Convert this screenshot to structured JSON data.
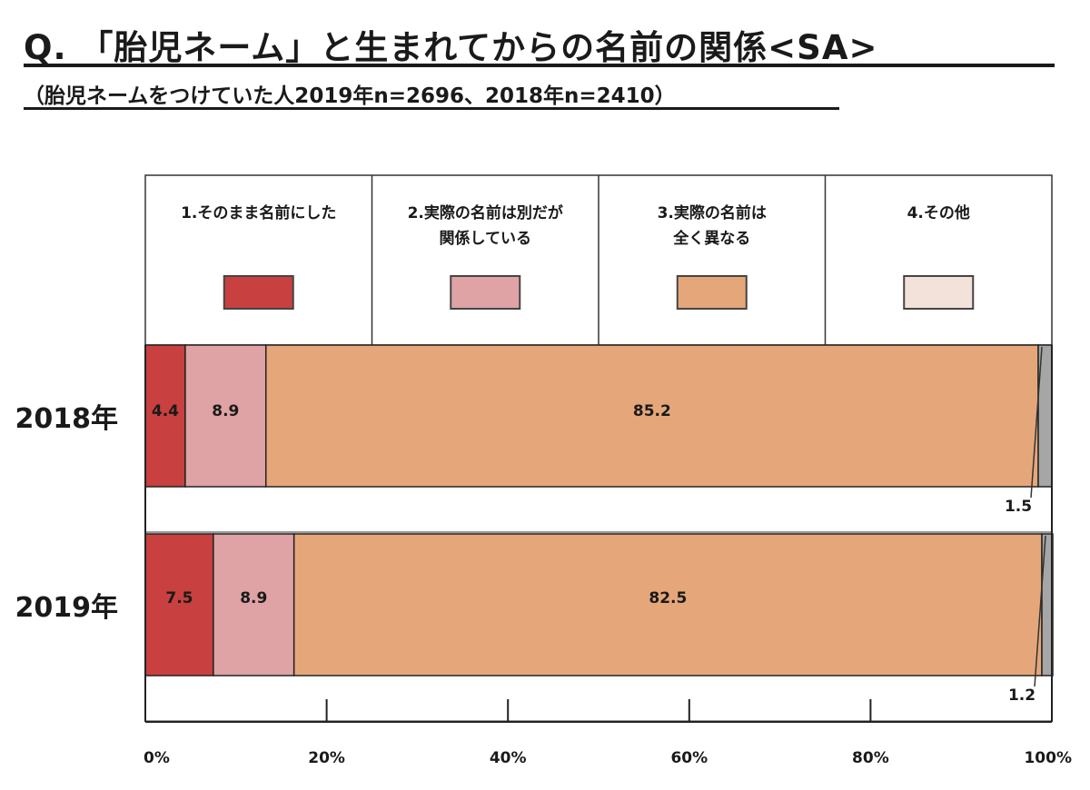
{
  "title": "Q. 「胎児ネーム」と生まれてからの名前の関係<SA>",
  "subtitle": "（胎児ネームをつけていた人2019年n=2696、2018年n=2410）",
  "chart_data": {
    "type": "bar",
    "orientation": "horizontal",
    "stacked": true,
    "percent": true,
    "categories": [
      "2018年",
      "2019年"
    ],
    "series": [
      {
        "name": "1.そのまま名前にした",
        "legend_lines": [
          "1.そのまま名前にした"
        ],
        "color": "#c8403f",
        "values": [
          4.4,
          7.5
        ],
        "labels": [
          "4.4",
          "7.5"
        ]
      },
      {
        "name": "2.実際の名前は別だが関係している",
        "legend_lines": [
          "2.実際の名前は別だが",
          "関係している"
        ],
        "color": "#dfa3a5",
        "values": [
          8.9,
          8.9
        ],
        "labels": [
          "8.9",
          "8.9"
        ]
      },
      {
        "name": "3.実際の名前は全く異なる",
        "legend_lines": [
          "3.実際の名前は",
          "全く異なる"
        ],
        "color": "#e5a77a",
        "values": [
          85.2,
          82.5
        ],
        "labels": [
          "85.2",
          "82.5"
        ]
      },
      {
        "name": "4.その他",
        "legend_lines": [
          "4.その他"
        ],
        "color": "#a6a6a6",
        "swatch_color": "#f2e2da",
        "values": [
          1.5,
          1.2
        ],
        "labels": [
          "1.5",
          "1.2"
        ]
      }
    ],
    "xlim": [
      0,
      100
    ],
    "xticks": [
      0,
      20,
      40,
      60,
      80,
      100
    ],
    "xtick_labels": [
      "0%",
      "20%",
      "40%",
      "60%",
      "80%",
      "100%"
    ],
    "legend_position": "top"
  }
}
